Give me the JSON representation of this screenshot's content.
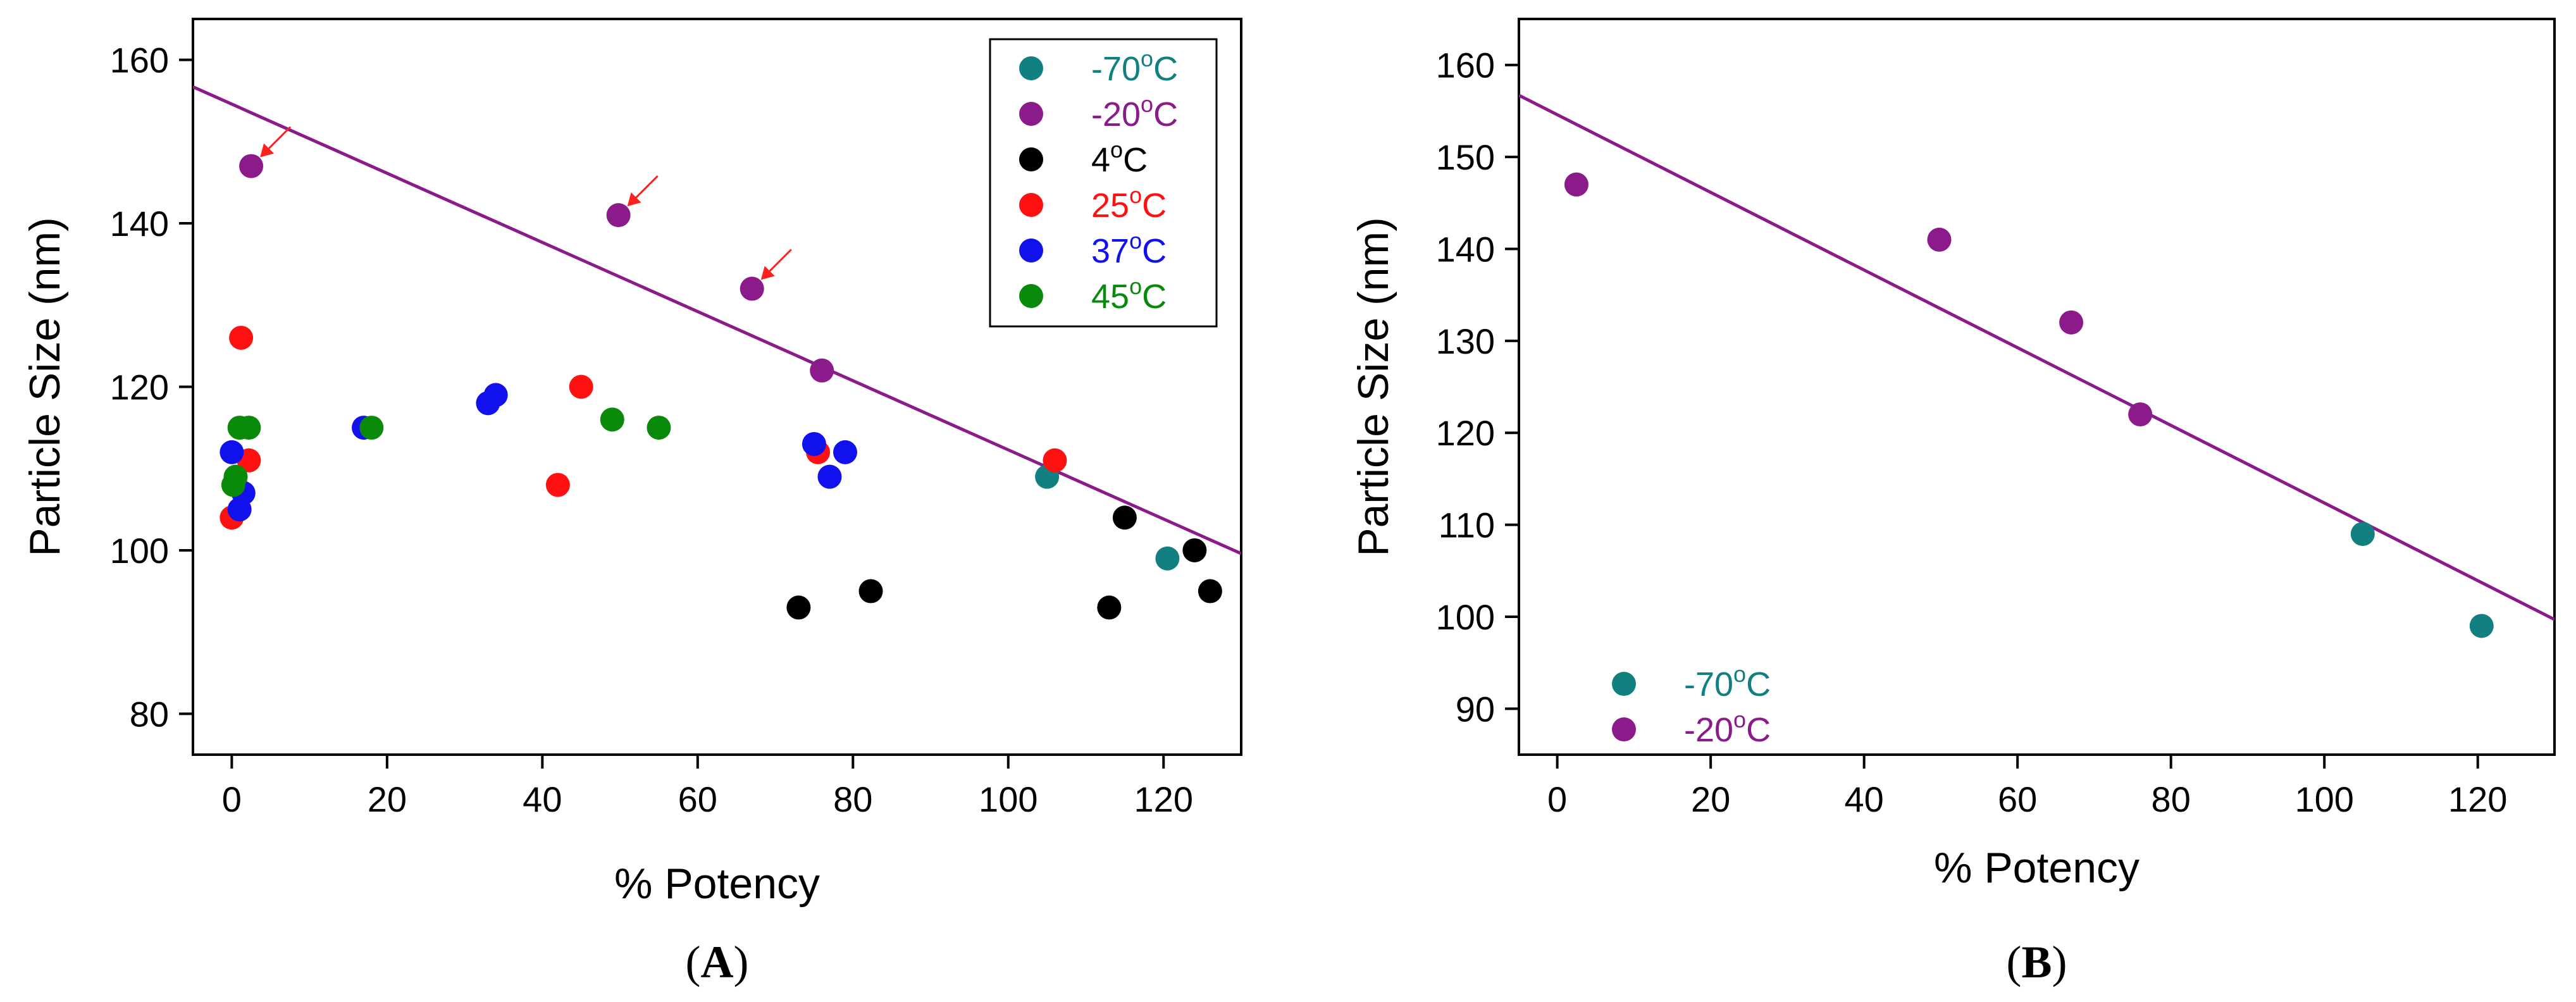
{
  "chart_data": [
    {
      "panel": "A",
      "type": "scatter",
      "panel_label": "A",
      "xlabel": "% Potency",
      "ylabel": "Particle Size (nm)",
      "xlim": [
        -5,
        130
      ],
      "ylim": [
        75,
        165
      ],
      "xticks": [
        0,
        20,
        40,
        60,
        80,
        100,
        120
      ],
      "yticks": [
        80,
        100,
        120,
        140,
        160
      ],
      "legend_position": "top-right",
      "trendline": {
        "x": [
          -5,
          130
        ],
        "y": [
          156.7,
          99.6
        ],
        "color": "#8B1A8B"
      },
      "series": [
        {
          "name": "-70",
          "unit": "C",
          "color": "#128080",
          "points": [
            [
              105,
              109
            ],
            [
              120.5,
              99
            ]
          ]
        },
        {
          "name": "-20",
          "unit": "C",
          "color": "#8B1A8B",
          "points": [
            [
              2.5,
              147
            ],
            [
              49.8,
              141
            ],
            [
              67,
              132
            ],
            [
              76,
              122
            ]
          ]
        },
        {
          "name": "4",
          "unit": "C",
          "color": "#000000",
          "points": [
            [
              73,
              93
            ],
            [
              82.3,
              95
            ],
            [
              113,
              93
            ],
            [
              115,
              104
            ],
            [
              124,
              100
            ],
            [
              126,
              95
            ]
          ]
        },
        {
          "name": "25",
          "unit": "C",
          "color": "#FF1111",
          "points": [
            [
              1.2,
              126
            ],
            [
              2.2,
              111
            ],
            [
              0,
              104
            ],
            [
              0.5,
              108
            ],
            [
              42,
              108
            ],
            [
              45,
              120
            ],
            [
              75.5,
              112
            ],
            [
              106,
              111
            ]
          ]
        },
        {
          "name": "37",
          "unit": "C",
          "color": "#1111EE",
          "points": [
            [
              0,
              112
            ],
            [
              1.5,
              107
            ],
            [
              1,
              105
            ],
            [
              17,
              115
            ],
            [
              33,
              118
            ],
            [
              34,
              119
            ],
            [
              75,
              113
            ],
            [
              77,
              109
            ],
            [
              79,
              112
            ]
          ]
        },
        {
          "name": "45",
          "unit": "C",
          "color": "#0A8A0A",
          "points": [
            [
              0.2,
              108
            ],
            [
              0.5,
              109
            ],
            [
              1,
              115
            ],
            [
              2.2,
              115
            ],
            [
              18,
              115
            ],
            [
              49,
              116
            ],
            [
              55,
              115
            ]
          ]
        }
      ],
      "arrows": [
        [
          2.5,
          147
        ],
        [
          49.8,
          141
        ],
        [
          67,
          132
        ]
      ]
    },
    {
      "panel": "B",
      "type": "scatter",
      "panel_label": "B",
      "xlabel": "% Potency",
      "ylabel": "Particle Size (nm)",
      "xlim": [
        -5,
        130
      ],
      "ylim": [
        85,
        165
      ],
      "xticks": [
        0,
        20,
        40,
        60,
        80,
        100,
        120
      ],
      "yticks": [
        90,
        100,
        110,
        120,
        130,
        140,
        150,
        160
      ],
      "legend_position": "bottom-left",
      "trendline": {
        "x": [
          -5,
          130
        ],
        "y": [
          156.7,
          99.7
        ],
        "color": "#8B1A8B"
      },
      "series": [
        {
          "name": "-70",
          "unit": "C",
          "color": "#128080",
          "points": [
            [
              105,
              109
            ],
            [
              120.5,
              99
            ]
          ]
        },
        {
          "name": "-20",
          "unit": "C",
          "color": "#8B1A8B",
          "points": [
            [
              2.5,
              147
            ],
            [
              49.8,
              141
            ],
            [
              67,
              132
            ],
            [
              76,
              122
            ]
          ]
        }
      ]
    }
  ]
}
